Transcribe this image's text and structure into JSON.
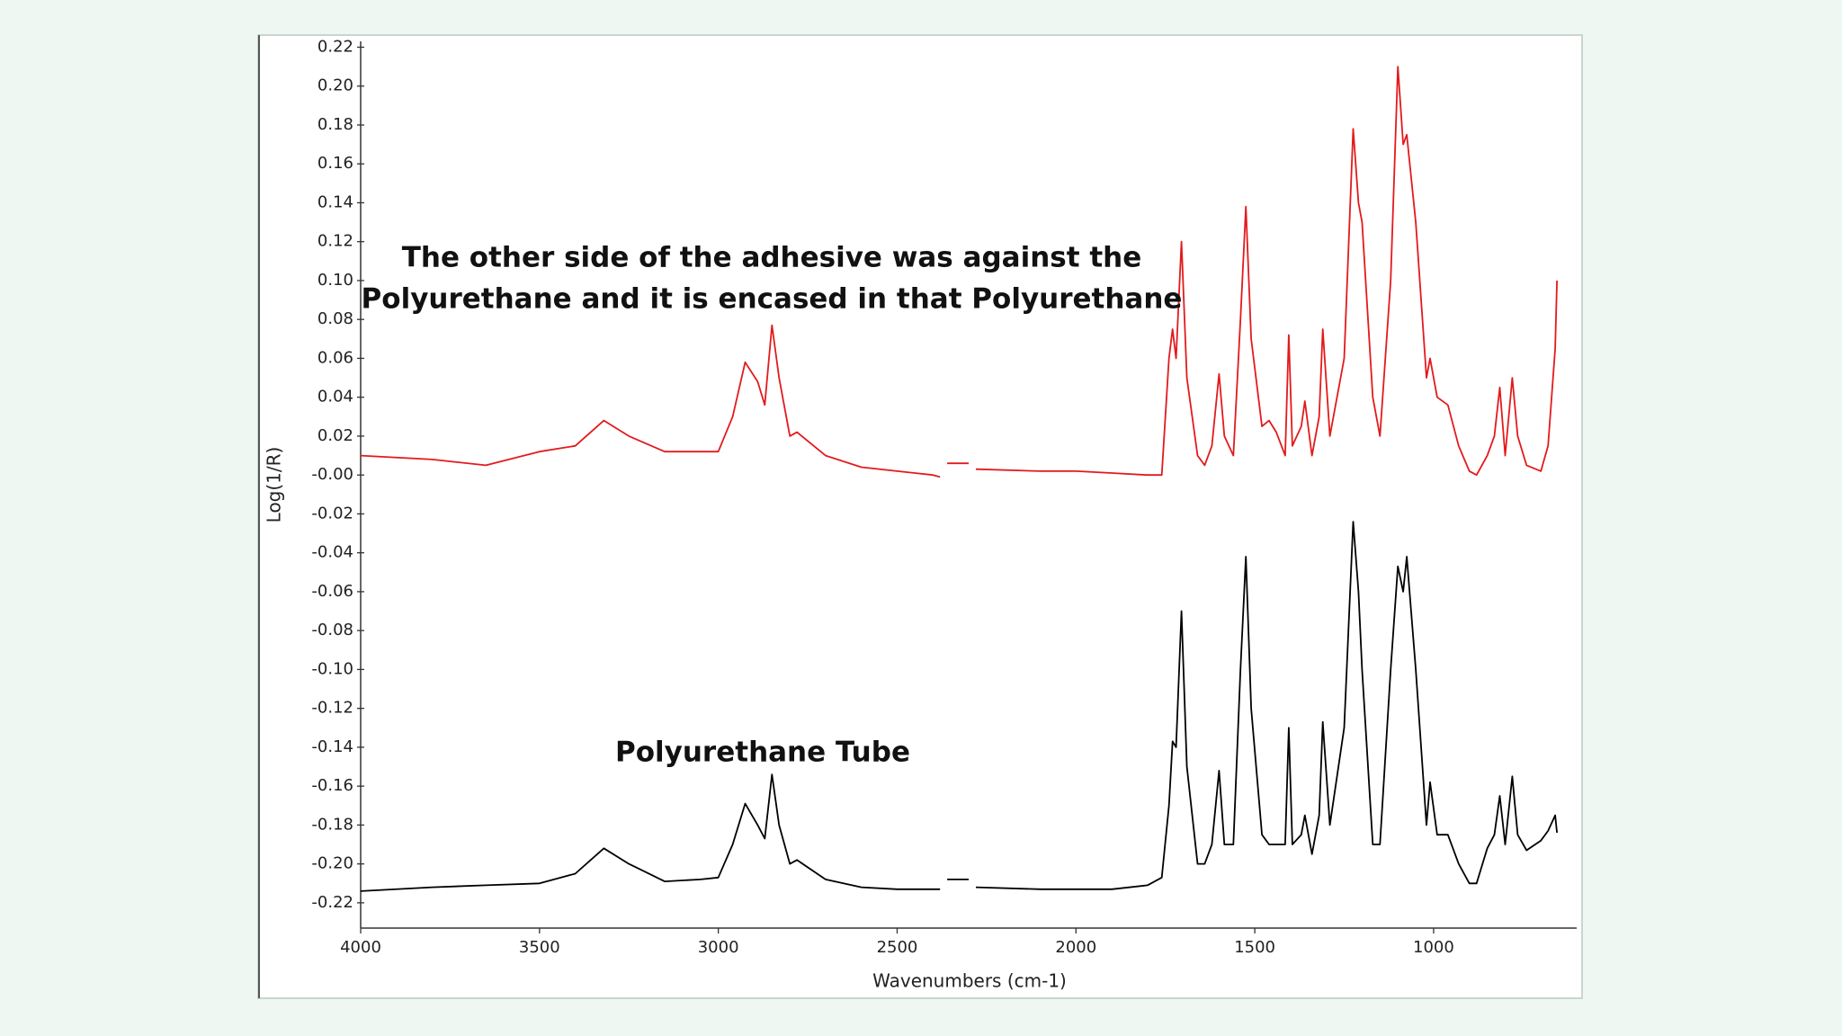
{
  "chart_data": {
    "type": "line",
    "xlabel": "Wavenumbers (cm-1)",
    "ylabel": "Log(1/R)",
    "annotations": [
      {
        "lines": [
          "The other side of the adhesive was against the",
          "Polyurethane and it is encased in that Polyurethane"
        ]
      },
      {
        "lines": [
          "Polyurethane Tube"
        ]
      }
    ],
    "xlim": [
      4000,
      600
    ],
    "xticks": [
      4000,
      3500,
      3000,
      2500,
      2000,
      1500,
      1000
    ],
    "ylim": [
      -0.233,
      0.223
    ],
    "yticks": [
      {
        "value": 0.22,
        "label": "0.22"
      },
      {
        "value": 0.2,
        "label": "0.20"
      },
      {
        "value": 0.18,
        "label": "0.18"
      },
      {
        "value": 0.16,
        "label": "0.16"
      },
      {
        "value": 0.14,
        "label": "0.14"
      },
      {
        "value": 0.12,
        "label": "0.12"
      },
      {
        "value": 0.1,
        "label": "0.10"
      },
      {
        "value": 0.08,
        "label": "0.08"
      },
      {
        "value": 0.06,
        "label": "0.06"
      },
      {
        "value": 0.04,
        "label": "0.04"
      },
      {
        "value": 0.02,
        "label": "0.02"
      },
      {
        "value": 0,
        "label": "-0.00"
      },
      {
        "value": -0.02,
        "label": "-0.02"
      },
      {
        "value": -0.04,
        "label": "-0.04"
      },
      {
        "value": -0.06,
        "label": "-0.06"
      },
      {
        "value": -0.08,
        "label": "-0.08"
      },
      {
        "value": -0.1,
        "label": "-0.10"
      },
      {
        "value": -0.12,
        "label": "-0.12"
      },
      {
        "value": -0.14,
        "label": "-0.14"
      },
      {
        "value": -0.16,
        "label": "-0.16"
      },
      {
        "value": -0.18,
        "label": "-0.18"
      },
      {
        "value": -0.2,
        "label": "-0.20"
      },
      {
        "value": -0.22,
        "label": "-0.22"
      }
    ],
    "x": [
      4000,
      3800,
      3650,
      3500,
      3400,
      3320,
      3250,
      3150,
      3050,
      3000,
      2960,
      2925,
      2890,
      2870,
      2850,
      2830,
      2800,
      2780,
      2700,
      2600,
      2500,
      2400,
      2380,
      2370,
      2360,
      2300,
      2290,
      2280,
      2100,
      2000,
      1900,
      1800,
      1760,
      1740,
      1730,
      1720,
      1705,
      1690,
      1660,
      1640,
      1620,
      1600,
      1585,
      1560,
      1540,
      1525,
      1510,
      1480,
      1460,
      1440,
      1415,
      1405,
      1395,
      1370,
      1360,
      1340,
      1320,
      1310,
      1290,
      1250,
      1225,
      1210,
      1200,
      1170,
      1150,
      1120,
      1100,
      1085,
      1075,
      1050,
      1020,
      1010,
      990,
      960,
      930,
      900,
      880,
      850,
      830,
      815,
      800,
      780,
      765,
      740,
      700,
      680,
      660,
      655
    ],
    "series": [
      {
        "name": "adhesive",
        "color": "#e31a1c",
        "values": [
          0.01,
          0.008,
          0.005,
          0.012,
          0.015,
          0.028,
          0.02,
          0.012,
          0.012,
          0.012,
          0.03,
          0.058,
          0.048,
          0.036,
          0.077,
          0.05,
          0.02,
          0.022,
          0.01,
          0.004,
          0.002,
          0.0,
          -0.001,
          null,
          0.006,
          0.006,
          null,
          0.003,
          0.002,
          0.002,
          0.001,
          0.0,
          0.0,
          0.06,
          0.075,
          0.06,
          0.12,
          0.05,
          0.01,
          0.005,
          0.015,
          0.052,
          0.02,
          0.01,
          0.08,
          0.138,
          0.07,
          0.025,
          0.028,
          0.022,
          0.01,
          0.072,
          0.015,
          0.025,
          0.038,
          0.01,
          0.03,
          0.075,
          0.02,
          0.06,
          0.178,
          0.14,
          0.13,
          0.04,
          0.02,
          0.1,
          0.21,
          0.17,
          0.175,
          0.13,
          0.05,
          0.06,
          0.04,
          0.036,
          0.015,
          0.002,
          0.0,
          0.01,
          0.02,
          0.045,
          0.01,
          0.05,
          0.02,
          0.005,
          0.002,
          0.015,
          0.065,
          0.1
        ]
      },
      {
        "name": "tube",
        "color": "#000000",
        "values": [
          -0.214,
          -0.212,
          -0.211,
          -0.21,
          -0.205,
          -0.192,
          -0.2,
          -0.209,
          -0.208,
          -0.207,
          -0.19,
          -0.169,
          -0.18,
          -0.187,
          -0.154,
          -0.18,
          -0.2,
          -0.198,
          -0.208,
          -0.212,
          -0.213,
          -0.213,
          -0.213,
          null,
          -0.208,
          -0.208,
          null,
          -0.212,
          -0.213,
          -0.213,
          -0.213,
          -0.211,
          -0.207,
          -0.17,
          -0.137,
          -0.14,
          -0.07,
          -0.15,
          -0.2,
          -0.2,
          -0.19,
          -0.152,
          -0.19,
          -0.19,
          -0.1,
          -0.042,
          -0.12,
          -0.185,
          -0.19,
          -0.19,
          -0.19,
          -0.13,
          -0.19,
          -0.185,
          -0.175,
          -0.195,
          -0.175,
          -0.127,
          -0.18,
          -0.13,
          -0.024,
          -0.06,
          -0.1,
          -0.19,
          -0.19,
          -0.1,
          -0.047,
          -0.06,
          -0.042,
          -0.1,
          -0.18,
          -0.158,
          -0.185,
          -0.185,
          -0.2,
          -0.21,
          -0.21,
          -0.192,
          -0.185,
          -0.165,
          -0.19,
          -0.155,
          -0.185,
          -0.193,
          -0.188,
          -0.183,
          -0.175,
          -0.184
        ]
      }
    ]
  }
}
